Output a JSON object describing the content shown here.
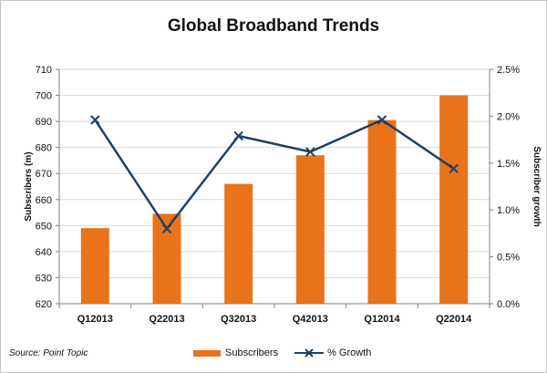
{
  "title": "Global Broadband Trends",
  "source": "Source: Point Topic",
  "colors": {
    "bars": "#e8731a",
    "line": "#1f3f66",
    "axis": "#808080",
    "grid": "#d9d9d9"
  },
  "chart_data": {
    "type": "bar",
    "title": "Global Broadband Trends",
    "categories": [
      "Q12013",
      "Q22013",
      "Q32013",
      "Q42013",
      "Q12014",
      "Q22014"
    ],
    "y_left": {
      "label": "Subscribers (m)",
      "lim": [
        620,
        710
      ],
      "ticks": [
        620,
        630,
        640,
        650,
        660,
        670,
        680,
        690,
        700,
        710
      ],
      "tick_labels": [
        "620",
        "630",
        "640",
        "650",
        "660",
        "670",
        "680",
        "690",
        "700",
        "710"
      ]
    },
    "y_right": {
      "label": "Subscriber growth",
      "lim": [
        0.0,
        2.5
      ],
      "ticks": [
        0.0,
        0.5,
        1.0,
        1.5,
        2.0,
        2.5
      ],
      "tick_labels": [
        "0.0%",
        "0.5%",
        "1.0%",
        "1.5%",
        "2.0%",
        "2.5%"
      ]
    },
    "series": [
      {
        "name": "Subscribers",
        "type": "bar",
        "axis": "left",
        "values": [
          649,
          654.5,
          666,
          677,
          690.5,
          700
        ]
      },
      {
        "name": "% Growth",
        "type": "line",
        "axis": "right",
        "marker": "x",
        "values": [
          1.96,
          0.8,
          1.79,
          1.62,
          1.96,
          1.44
        ]
      }
    ],
    "grid": true,
    "legend": "bottom"
  }
}
